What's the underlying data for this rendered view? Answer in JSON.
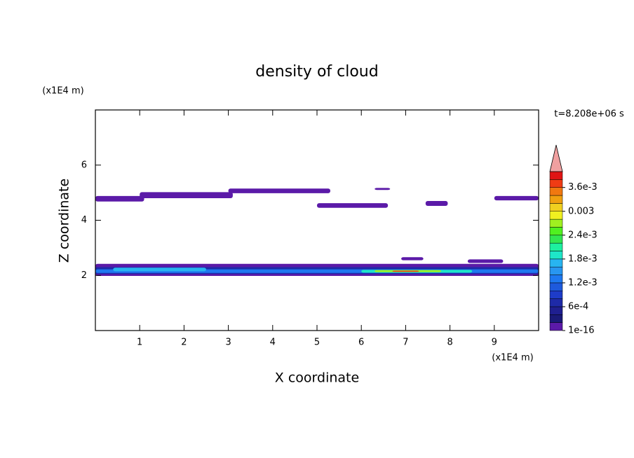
{
  "chart_data": {
    "type": "contour",
    "title": "density of cloud",
    "xlabel": "X coordinate",
    "ylabel": "Z coordinate",
    "x_unit": "(x1E4 m)",
    "y_unit": "(x1E4 m)",
    "time_label": "t=8.208e+06 s",
    "xlim": [
      0,
      10
    ],
    "ylim": [
      0,
      8
    ],
    "xticks": [
      1,
      2,
      3,
      4,
      5,
      6,
      7,
      8,
      9
    ],
    "yticks": [
      2,
      4,
      6
    ],
    "regions": [
      {
        "x": [
          0,
          1.1
        ],
        "z": [
          4.68,
          4.88
        ],
        "color": "#5b1aa8"
      },
      {
        "x": [
          1.0,
          3.1
        ],
        "z": [
          4.8,
          5.02
        ],
        "color": "#5b1aa8"
      },
      {
        "x": [
          3.0,
          5.3
        ],
        "z": [
          4.98,
          5.15
        ],
        "color": "#5b1aa8"
      },
      {
        "x": [
          6.3,
          6.65
        ],
        "z": [
          5.1,
          5.17
        ],
        "color": "#5b1aa8"
      },
      {
        "x": [
          5.0,
          6.6
        ],
        "z": [
          4.45,
          4.62
        ],
        "color": "#5b1aa8"
      },
      {
        "x": [
          7.45,
          7.95
        ],
        "z": [
          4.52,
          4.7
        ],
        "color": "#5b1aa8"
      },
      {
        "x": [
          9.0,
          10
        ],
        "z": [
          4.72,
          4.88
        ],
        "color": "#5b1aa8"
      },
      {
        "x": [
          0,
          10
        ],
        "z": [
          1.98,
          2.42
        ],
        "color": "#5b1aa8"
      },
      {
        "x": [
          6.9,
          7.4
        ],
        "z": [
          2.55,
          2.66
        ],
        "color": "#5b1aa8"
      },
      {
        "x": [
          8.4,
          9.2
        ],
        "z": [
          2.45,
          2.58
        ],
        "color": "#5b1aa8"
      },
      {
        "x": [
          0,
          10
        ],
        "z": [
          2.05,
          2.3
        ],
        "color": "#1e2aa8"
      },
      {
        "x": [
          0,
          10
        ],
        "z": [
          2.09,
          2.22
        ],
        "color": "#1e78f0"
      },
      {
        "x": [
          0.4,
          2.5
        ],
        "z": [
          2.15,
          2.28
        ],
        "color": "#28b4f0"
      },
      {
        "x": [
          6.0,
          8.5
        ],
        "z": [
          2.1,
          2.2
        ],
        "color": "#1ee6c8"
      },
      {
        "x": [
          6.3,
          7.8
        ],
        "z": [
          2.12,
          2.19
        ],
        "color": "#a0f020"
      },
      {
        "x": [
          6.7,
          7.3
        ],
        "z": [
          2.13,
          2.17
        ],
        "color": "#f03c14"
      }
    ],
    "colorbar": {
      "clim": [
        0,
        0.004
      ],
      "colors": [
        "#5b1aa8",
        "#1a1a78",
        "#1f1f90",
        "#1e2aa8",
        "#1e3cc8",
        "#1e5adc",
        "#1e78f0",
        "#2896f0",
        "#28b4f0",
        "#1ee6c8",
        "#1ef0a0",
        "#32e650",
        "#50f020",
        "#a0f020",
        "#f0f020",
        "#f0d020",
        "#f0a010",
        "#f07810",
        "#f03c14",
        "#e01414"
      ],
      "extend_color": "#f0a0a0",
      "ticks": [
        {
          "value": 1e-16,
          "label": "1e-16"
        },
        {
          "value": 0.0006,
          "label": "6e-4"
        },
        {
          "value": 0.0012,
          "label": "1.2e-3"
        },
        {
          "value": 0.0018,
          "label": "1.8e-3"
        },
        {
          "value": 0.0024,
          "label": "2.4e-3"
        },
        0.003,
        {
          "value": 0.0036,
          "label": "3.6e-3"
        }
      ]
    }
  }
}
